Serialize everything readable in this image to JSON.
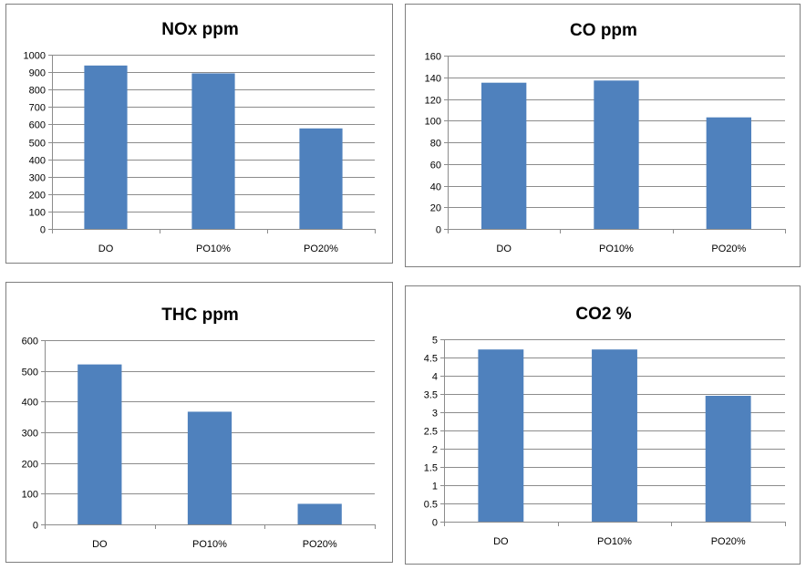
{
  "chart_data": [
    {
      "type": "bar",
      "title": "NOx ppm",
      "categories": [
        "DO",
        "PO10%",
        "PO20%"
      ],
      "values": [
        938,
        893,
        577
      ],
      "ylim": [
        0,
        1000
      ],
      "yticks": [
        0,
        100,
        200,
        300,
        400,
        500,
        600,
        700,
        800,
        900,
        1000
      ],
      "grid": true,
      "bar_color": "#4f81bd"
    },
    {
      "type": "bar",
      "title": "CO ppm",
      "categories": [
        "DO",
        "PO10%",
        "PO20%"
      ],
      "values": [
        135,
        137,
        103
      ],
      "ylim": [
        0,
        160
      ],
      "yticks": [
        0,
        20,
        40,
        60,
        80,
        100,
        120,
        140,
        160
      ],
      "grid": true,
      "bar_color": "#4f81bd"
    },
    {
      "type": "bar",
      "title": "THC ppm",
      "categories": [
        "DO",
        "PO10%",
        "PO20%"
      ],
      "values": [
        521,
        367,
        67
      ],
      "ylim": [
        0,
        600
      ],
      "yticks": [
        0,
        100,
        200,
        300,
        400,
        500,
        600
      ],
      "grid": true,
      "bar_color": "#4f81bd"
    },
    {
      "type": "bar",
      "title": "CO2 %",
      "categories": [
        "DO",
        "PO10%",
        "PO20%"
      ],
      "values": [
        4.72,
        4.72,
        3.45
      ],
      "ylim": [
        0,
        5
      ],
      "yticks": [
        0,
        0.5,
        1,
        1.5,
        2,
        2.5,
        3,
        3.5,
        4,
        4.5,
        5
      ],
      "grid": true,
      "bar_color": "#4f81bd"
    }
  ]
}
